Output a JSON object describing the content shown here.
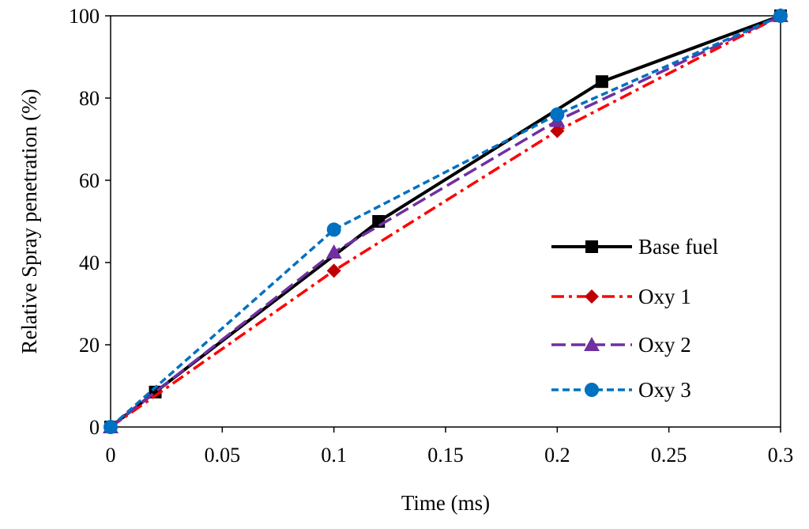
{
  "chart_data": {
    "type": "line",
    "title": "",
    "xlabel": "Time (ms)",
    "ylabel": "Relative Spray penetration (%)",
    "xlim": [
      0,
      0.3
    ],
    "ylim": [
      0,
      100
    ],
    "xticks": [
      "0",
      "0.05",
      "0.1",
      "0.15",
      "0.2",
      "0.25",
      "0.3"
    ],
    "yticks": [
      "0",
      "20",
      "40",
      "60",
      "80",
      "100"
    ],
    "grid": false,
    "legend_position": "right",
    "series": [
      {
        "name": "Base fuel",
        "color": "#000000",
        "line_style": "solid",
        "marker": "square",
        "x": [
          0,
          0.02,
          0.12,
          0.22,
          0.3
        ],
        "y": [
          0,
          8.5,
          50,
          84,
          100
        ]
      },
      {
        "name": "Oxy 1",
        "color": "#ff0000",
        "marker_color": "#c00000",
        "line_style": "dash-dot",
        "marker": "diamond",
        "x": [
          0,
          0.1,
          0.2,
          0.3
        ],
        "y": [
          0,
          38,
          72,
          100
        ]
      },
      {
        "name": "Oxy 2",
        "color": "#7030a0",
        "line_style": "long-dash",
        "marker": "triangle",
        "x": [
          0,
          0.1,
          0.2,
          0.3
        ],
        "y": [
          0,
          42.5,
          74.5,
          100
        ]
      },
      {
        "name": "Oxy 3",
        "color": "#0070c0",
        "line_style": "short-dash",
        "marker": "circle",
        "x": [
          0,
          0.1,
          0.2,
          0.3
        ],
        "y": [
          0,
          48,
          76,
          100
        ]
      }
    ]
  }
}
